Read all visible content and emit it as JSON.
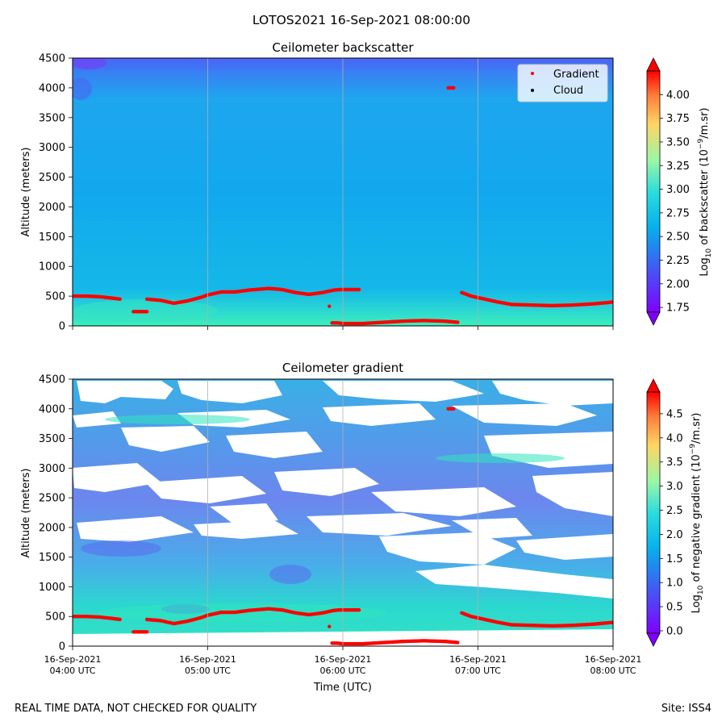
{
  "figure": {
    "suptitle": "LOTOS2021 16-Sep-2021 08:00:00",
    "footer_left": "REAL TIME DATA, NOT CHECKED FOR QUALITY",
    "footer_right": "Site: ISS4"
  },
  "chart_data": [
    {
      "type": "heatmap",
      "title": "Ceilometer backscatter",
      "ylabel": "Altitude (meters)",
      "xlabel": "",
      "xlim": [
        4.0,
        8.0
      ],
      "ylim": [
        0,
        4500
      ],
      "yticks": [
        0,
        500,
        1000,
        1500,
        2000,
        2500,
        3000,
        3500,
        4000,
        4500
      ],
      "ytick_labels": [
        "0",
        "500",
        "1000",
        "1500",
        "2000",
        "2500",
        "3000",
        "3500",
        "4000",
        "4500"
      ],
      "xticks": [
        4.0,
        5.0,
        6.0,
        7.0,
        8.0
      ],
      "grid": "vertical",
      "colorbar": {
        "label_prefix": "Log",
        "label_sub": "10",
        "label_mid": " of backscatter (10",
        "label_sup": "−9",
        "label_suffix": "/m.sr)",
        "range": [
          1.7,
          4.25
        ],
        "ticks": [
          1.75,
          2.0,
          2.25,
          2.5,
          2.75,
          3.0,
          3.25,
          3.5,
          3.75,
          4.0
        ],
        "tick_labels": [
          "1.75",
          "2.00",
          "2.25",
          "2.50",
          "2.75",
          "3.00",
          "3.25",
          "3.50",
          "3.75",
          "4.00"
        ]
      },
      "legend": {
        "placement": "top-right",
        "entries": [
          {
            "label": "Gradient",
            "color": "#ff0000"
          },
          {
            "label": "Cloud",
            "color": "#000000"
          }
        ]
      }
    },
    {
      "type": "heatmap",
      "title": "Ceilometer gradient",
      "ylabel": "Altitude (meters)",
      "xlabel": "Time (UTC)",
      "xlim": [
        4.0,
        8.0
      ],
      "ylim": [
        0,
        4500
      ],
      "yticks": [
        0,
        500,
        1000,
        1500,
        2000,
        2500,
        3000,
        3500,
        4000,
        4500
      ],
      "ytick_labels": [
        "0",
        "500",
        "1000",
        "1500",
        "2000",
        "2500",
        "3000",
        "3500",
        "4000",
        "4500"
      ],
      "xticks": [
        4.0,
        5.0,
        6.0,
        7.0,
        8.0
      ],
      "xtick_labels": [
        [
          "16-Sep-2021",
          "04:00 UTC"
        ],
        [
          "16-Sep-2021",
          "05:00 UTC"
        ],
        [
          "16-Sep-2021",
          "06:00 UTC"
        ],
        [
          "16-Sep-2021",
          "07:00 UTC"
        ],
        [
          "16-Sep-2021",
          "08:00 UTC"
        ]
      ],
      "grid": "vertical",
      "colorbar": {
        "label_prefix": "Log",
        "label_sub": "10",
        "label_mid": " of negative gradient (10",
        "label_sup": "−9",
        "label_suffix": "/m.sr)",
        "range": [
          -0.05,
          4.95
        ],
        "ticks": [
          0.0,
          0.5,
          1.0,
          1.5,
          2.0,
          2.5,
          3.0,
          3.5,
          4.0,
          4.5
        ],
        "tick_labels": [
          "0.0",
          "0.5",
          "1.0",
          "1.5",
          "2.0",
          "2.5",
          "3.0",
          "3.5",
          "4.0",
          "4.5"
        ]
      }
    }
  ],
  "gradient_layer": [
    [
      4.0,
      500
    ],
    [
      4.1,
      500
    ],
    [
      4.2,
      490
    ],
    [
      4.28,
      470
    ],
    [
      4.35,
      450
    ],
    [
      4.45,
      240
    ],
    [
      4.55,
      240
    ],
    [
      4.55,
      450
    ],
    [
      4.65,
      430
    ],
    [
      4.75,
      380
    ],
    [
      4.85,
      420
    ],
    [
      4.95,
      480
    ],
    [
      5.0,
      520
    ],
    [
      5.1,
      570
    ],
    [
      5.2,
      570
    ],
    [
      5.3,
      600
    ],
    [
      5.45,
      630
    ],
    [
      5.55,
      610
    ],
    [
      5.65,
      560
    ],
    [
      5.75,
      530
    ],
    [
      5.85,
      560
    ],
    [
      5.93,
      600
    ],
    [
      5.97,
      610
    ],
    [
      6.05,
      610
    ],
    [
      6.12,
      610
    ],
    [
      5.9,
      330
    ],
    [
      5.92,
      50
    ],
    [
      5.96,
      50
    ],
    [
      6.0,
      40
    ],
    [
      6.15,
      40
    ],
    [
      6.3,
      60
    ],
    [
      6.45,
      80
    ],
    [
      6.6,
      90
    ],
    [
      6.75,
      80
    ],
    [
      6.85,
      60
    ],
    [
      6.78,
      4000
    ],
    [
      6.82,
      4000
    ],
    [
      6.88,
      560
    ],
    [
      6.95,
      500
    ],
    [
      7.05,
      450
    ],
    [
      7.15,
      400
    ],
    [
      7.25,
      360
    ],
    [
      7.4,
      350
    ],
    [
      7.55,
      340
    ],
    [
      7.7,
      350
    ],
    [
      7.85,
      370
    ],
    [
      8.0,
      400
    ]
  ]
}
